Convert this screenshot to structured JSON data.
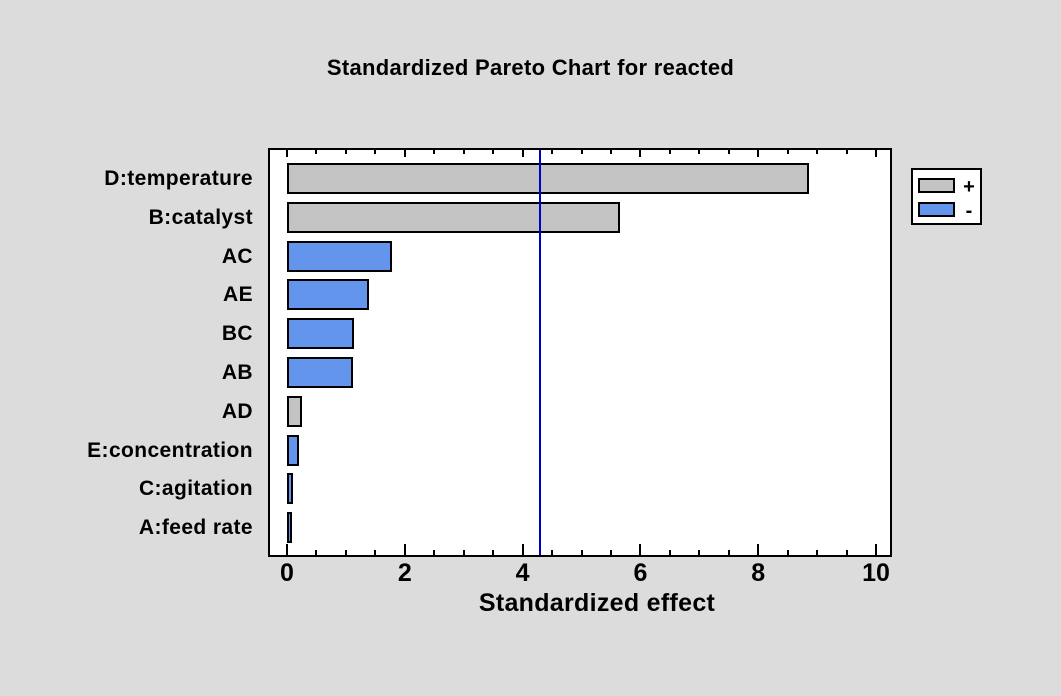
{
  "page": {
    "background_color": "#dcdcdc",
    "plot_background_color": "#ffffff"
  },
  "chart_data": {
    "type": "bar",
    "orientation": "horizontal",
    "title": "Standardized Pareto Chart for reacted",
    "xlabel": "Standardized effect",
    "ylabel": "",
    "xlim": [
      0,
      10
    ],
    "grid": false,
    "categories": [
      "D:temperature",
      "B:catalyst",
      "AC",
      "AE",
      "BC",
      "AB",
      "AD",
      "E:concentration",
      "C:agitation",
      "A:feed rate"
    ],
    "values": [
      8.87,
      5.65,
      1.78,
      1.39,
      1.14,
      1.12,
      0.26,
      0.21,
      0.11,
      0.06
    ],
    "signs": [
      "+",
      "+",
      "-",
      "-",
      "-",
      "-",
      "+",
      "-",
      "-",
      "-"
    ],
    "bar_colors": {
      "plus": "#c3c3c3",
      "minus": "#6495ed"
    },
    "bar_border_color": "#000000",
    "x_major_ticks": [
      0,
      2,
      4,
      6,
      8,
      10
    ],
    "x_tick_labels": [
      "0",
      "2",
      "4",
      "6",
      "8",
      "10"
    ],
    "x_minor_tick_step": 0.5,
    "reference_line": {
      "value": 4.3,
      "color": "#0000cc"
    },
    "legend": {
      "position": "right",
      "entries": [
        {
          "label": "+",
          "color": "#c3c3c3"
        },
        {
          "label": "-",
          "color": "#6495ed"
        }
      ]
    }
  }
}
